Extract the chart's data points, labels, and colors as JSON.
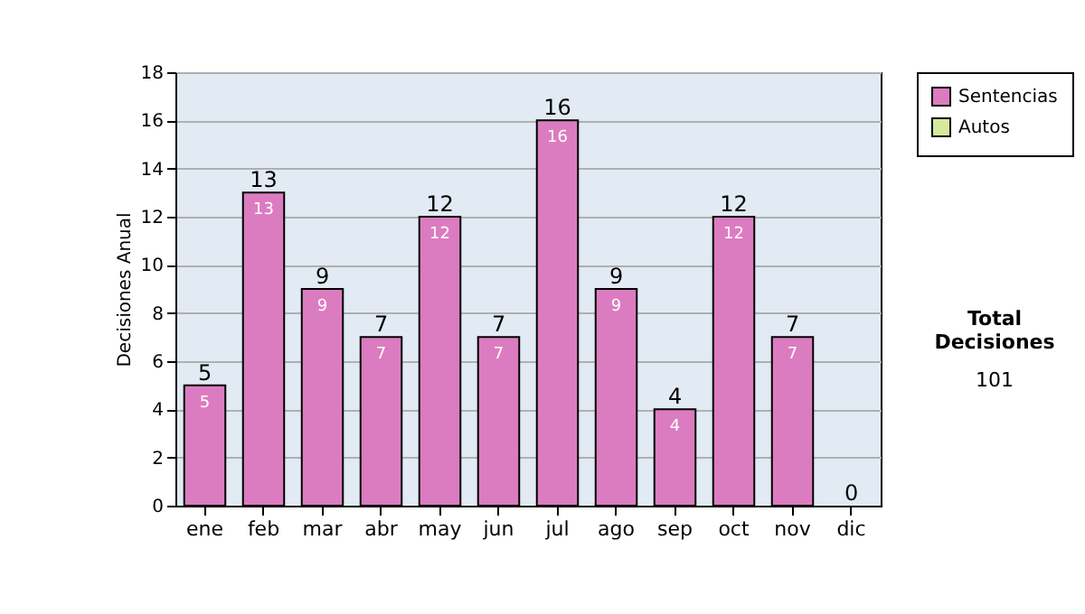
{
  "chart_data": {
    "type": "bar",
    "stacked": true,
    "ylabel": "Decisiones Anual",
    "categories": [
      "ene",
      "feb",
      "mar",
      "abr",
      "may",
      "jun",
      "jul",
      "ago",
      "sep",
      "oct",
      "nov",
      "dic"
    ],
    "series": [
      {
        "name": "Sentencias",
        "color": "#dc7cc0",
        "values": [
          5,
          13,
          9,
          7,
          12,
          7,
          16,
          9,
          4,
          12,
          7,
          0
        ],
        "value_labels": [
          "5",
          "13",
          "9",
          "7",
          "12",
          "7",
          "16",
          "9",
          "4",
          "12",
          "7",
          null
        ]
      },
      {
        "name": "Autos",
        "color": "#d6e99c",
        "values": [
          0,
          0,
          0,
          0,
          0,
          0,
          0,
          0,
          0,
          0,
          0,
          0
        ]
      }
    ],
    "totals": [
      "5",
      "13",
      "9",
      "7",
      "12",
      "7",
      "16",
      "9",
      "4",
      "12",
      "7",
      "0"
    ],
    "ylim": [
      0,
      18
    ],
    "yticks": [
      0,
      2,
      4,
      6,
      8,
      10,
      12,
      14,
      16,
      18
    ],
    "grid": true,
    "legend": "right",
    "annotations": [
      "Total Decisiones",
      "101"
    ]
  }
}
